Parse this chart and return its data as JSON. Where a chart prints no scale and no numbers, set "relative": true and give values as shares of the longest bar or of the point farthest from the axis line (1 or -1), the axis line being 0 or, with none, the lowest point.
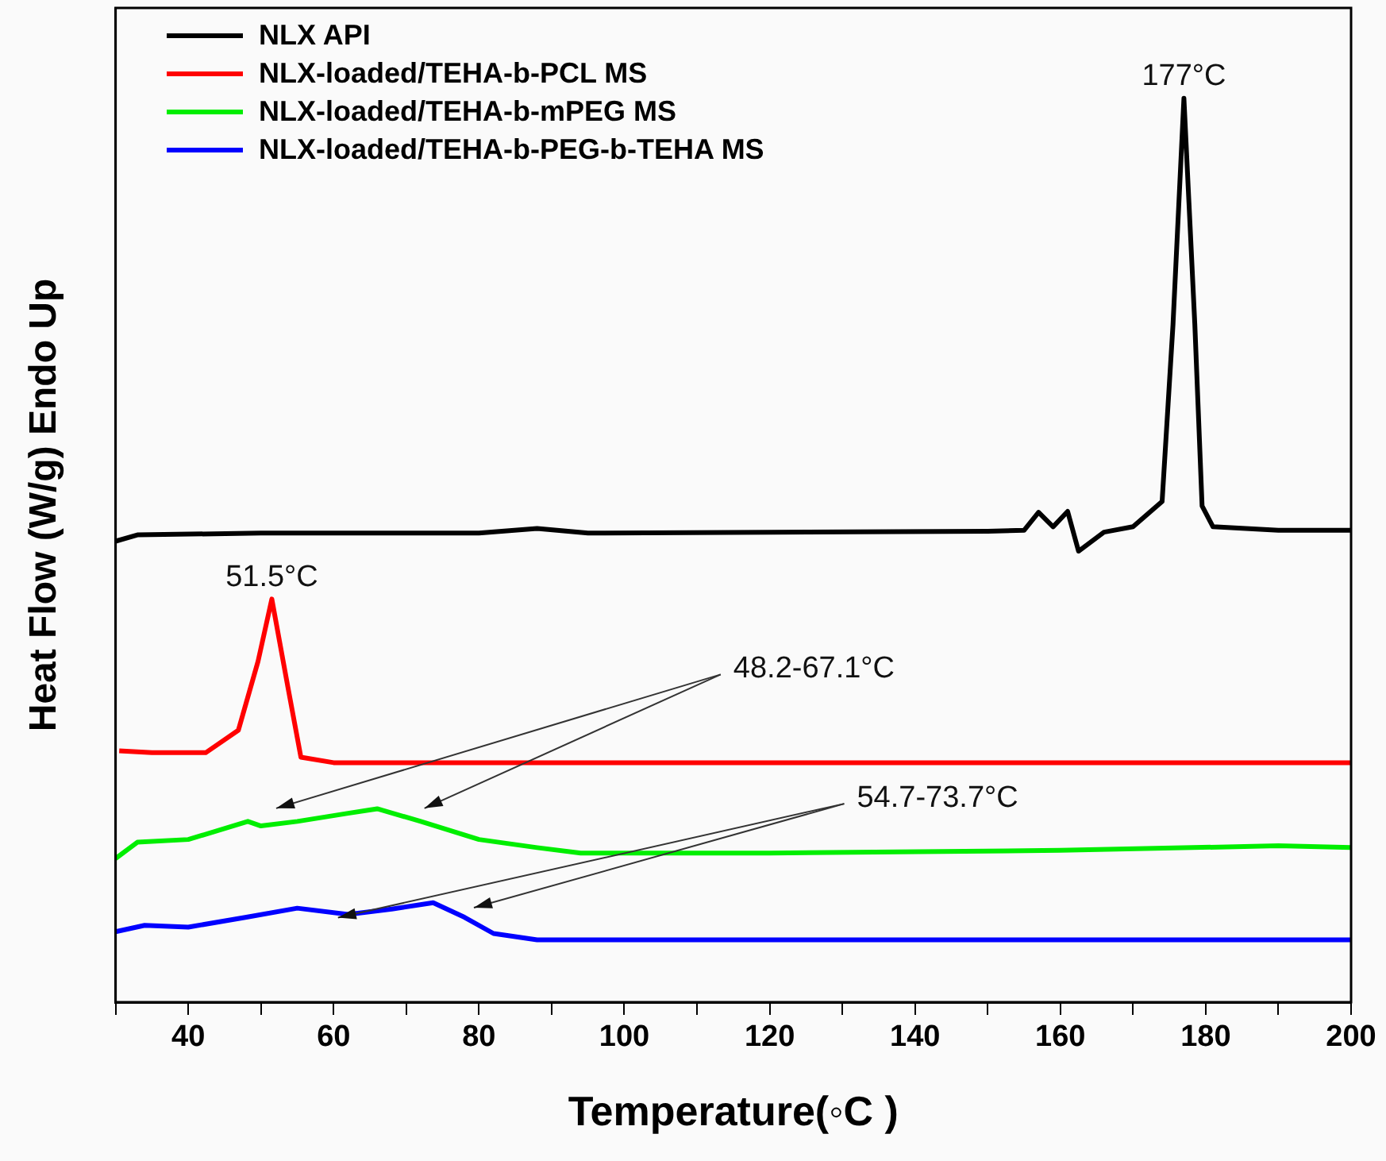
{
  "chart_data": {
    "type": "line",
    "xlabel": "Temperature(◦C )",
    "ylabel": "Heat Flow (W/g) Endo Up",
    "relative": true,
    "xlim": [
      30,
      200
    ],
    "xticks": [
      {
        "value": 30,
        "label": null
      },
      40,
      {
        "value": 50,
        "label": null
      },
      60,
      {
        "value": 70,
        "label": null
      },
      80,
      {
        "value": 90,
        "label": null
      },
      100,
      {
        "value": 110,
        "label": null
      },
      120,
      {
        "value": 130,
        "label": null
      },
      140,
      {
        "value": 150,
        "label": null
      },
      160,
      {
        "value": 170,
        "label": null
      },
      180,
      {
        "value": 190,
        "label": null
      },
      200
    ],
    "grid": false,
    "legend": "top left",
    "tick_labels": "x",
    "series": [
      {
        "name": "NLX API",
        "color": "#000000",
        "x": [
          30,
          33,
          50,
          80,
          88,
          95,
          120,
          150,
          155,
          157,
          159,
          161,
          162.5,
          166,
          170,
          174,
          175.5,
          177,
          178.5,
          179.5,
          181,
          190,
          200
        ],
        "values": [
          0.51,
          0.517,
          0.519,
          0.519,
          0.524,
          0.519,
          0.52,
          0.521,
          0.522,
          0.542,
          0.526,
          0.543,
          0.499,
          0.52,
          0.526,
          0.554,
          0.75,
          1,
          0.75,
          0.549,
          0.526,
          0.522,
          0.522
        ]
      },
      {
        "name": "NLX-loaded/TEHA-b-PCL MS",
        "color": "#ff0000",
        "x": [
          30.5,
          35,
          42.4,
          46.9,
          49.6,
          51.5,
          53.7,
          55.5,
          60,
          100,
          150,
          200
        ],
        "values": [
          0.278,
          0.276,
          0.276,
          0.301,
          0.377,
          0.446,
          0.349,
          0.271,
          0.265,
          0.265,
          0.265,
          0.265
        ]
      },
      {
        "name": "NLX-loaded/TEHA-b-mPEG MS",
        "color": "#00ee00",
        "x": [
          30,
          33,
          40,
          48.2,
          50,
          55,
          62,
          66,
          72,
          80,
          88,
          94,
          120,
          160,
          190,
          200
        ],
        "values": [
          0.159,
          0.177,
          0.18,
          0.2,
          0.195,
          0.2,
          0.209,
          0.214,
          0.2,
          0.18,
          0.171,
          0.165,
          0.165,
          0.168,
          0.173,
          0.171
        ]
      },
      {
        "name": "NLX-loaded/TEHA-b-PEG-b-TEHA MS",
        "color": "#0000ff",
        "x": [
          30,
          34,
          40,
          48,
          55,
          62,
          68,
          73.7,
          78,
          82,
          88,
          120,
          200
        ],
        "values": [
          0.078,
          0.085,
          0.083,
          0.094,
          0.104,
          0.097,
          0.103,
          0.11,
          0.094,
          0.076,
          0.069,
          0.069,
          0.069
        ]
      }
    ],
    "annotations": [
      {
        "text": "177°C",
        "x": 177,
        "y": 1
      },
      {
        "text": "51.5°C",
        "x": 51.5,
        "y": 0.446
      },
      "48.2-67.1°C",
      "54.7-73.7°C"
    ]
  }
}
